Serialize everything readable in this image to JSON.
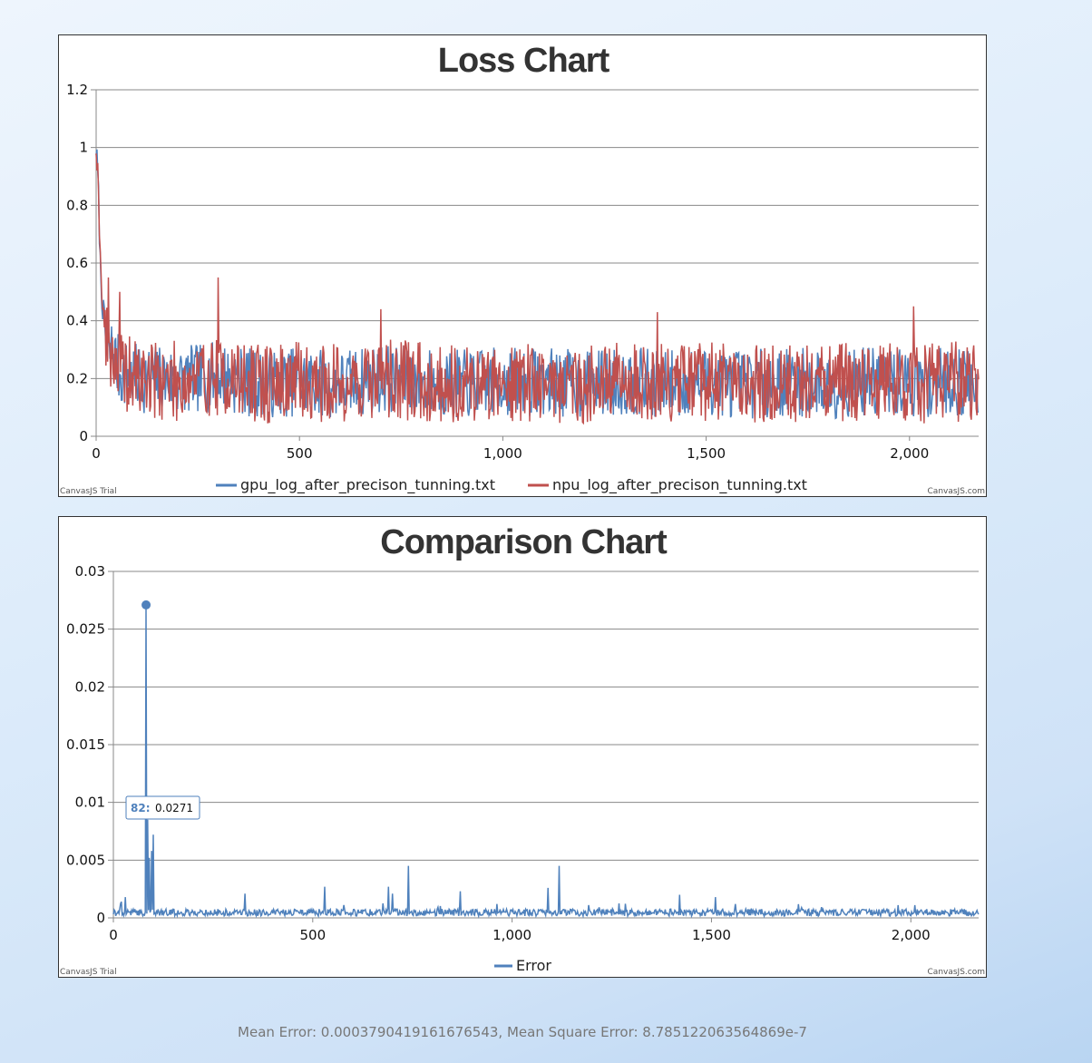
{
  "colors": {
    "gpu": "#4f81bc",
    "npu": "#c0504e",
    "error": "#4f81bc",
    "grid": "#888888"
  },
  "chart_data": [
    {
      "type": "line",
      "title": "Loss Chart",
      "xlabel": "",
      "ylabel": "",
      "xlim": [
        0,
        2170
      ],
      "ylim": [
        0,
        1.2
      ],
      "x_ticks": [
        0,
        500,
        1000,
        1500,
        2000
      ],
      "x_tick_labels": [
        "0",
        "500",
        "1,000",
        "1,500",
        "2,000"
      ],
      "y_ticks": [
        0,
        0.2,
        0.4,
        0.6,
        0.8,
        1,
        1.2
      ],
      "y_tick_labels": [
        "0",
        "0.2",
        "0.4",
        "0.6",
        "0.8",
        "1",
        "1.2"
      ],
      "grid": true,
      "legend_position": "bottom",
      "series": [
        {
          "name": "gpu_log_after_precison_tunning.txt",
          "color": "#4f81bc",
          "x": [
            0,
            5,
            10,
            15,
            20,
            25,
            30,
            40,
            50,
            60,
            80,
            100,
            150,
            200,
            250,
            300,
            400,
            500,
            600,
            700,
            800,
            900,
            1000,
            1100,
            1200,
            1300,
            1400,
            1500,
            1600,
            1700,
            1800,
            1900,
            2000,
            2100,
            2170
          ],
          "values": [
            1.0,
            0.88,
            0.6,
            0.46,
            0.4,
            0.3,
            0.28,
            0.3,
            0.25,
            0.22,
            0.21,
            0.2,
            0.2,
            0.19,
            0.2,
            0.21,
            0.18,
            0.19,
            0.18,
            0.2,
            0.19,
            0.18,
            0.19,
            0.19,
            0.18,
            0.19,
            0.18,
            0.19,
            0.18,
            0.19,
            0.18,
            0.19,
            0.18,
            0.19,
            0.18
          ]
        },
        {
          "name": "npu_log_after_precison_tunning.txt",
          "color": "#c0504e",
          "x": [
            0,
            5,
            10,
            15,
            20,
            25,
            30,
            40,
            50,
            60,
            80,
            100,
            150,
            200,
            250,
            300,
            400,
            500,
            600,
            700,
            800,
            900,
            1000,
            1100,
            1200,
            1300,
            1400,
            1500,
            1600,
            1700,
            1800,
            1900,
            2000,
            2100,
            2170
          ],
          "values": [
            1.0,
            0.9,
            0.62,
            0.48,
            0.4,
            0.32,
            0.29,
            0.3,
            0.26,
            0.22,
            0.21,
            0.2,
            0.2,
            0.19,
            0.2,
            0.21,
            0.18,
            0.19,
            0.18,
            0.2,
            0.19,
            0.18,
            0.19,
            0.19,
            0.18,
            0.19,
            0.18,
            0.19,
            0.18,
            0.19,
            0.18,
            0.19,
            0.18,
            0.19,
            0.18
          ],
          "spikes": [
            [
              30,
              0.55
            ],
            [
              58,
              0.5
            ],
            [
              300,
              0.55
            ],
            [
              700,
              0.44
            ],
            [
              1380,
              0.43
            ],
            [
              1735,
              0.42
            ],
            [
              2010,
              0.45
            ],
            [
              2135,
              0.41
            ]
          ],
          "noise_amplitude": 0.14
        }
      ]
    },
    {
      "type": "line",
      "title": "Comparison Chart",
      "xlabel": "",
      "ylabel": "",
      "xlim": [
        0,
        2170
      ],
      "ylim": [
        0,
        0.03
      ],
      "x_ticks": [
        0,
        500,
        1000,
        1500,
        2000
      ],
      "x_tick_labels": [
        "0",
        "500",
        "1,000",
        "1,500",
        "2,000"
      ],
      "y_ticks": [
        0,
        0.005,
        0.01,
        0.015,
        0.02,
        0.025,
        0.03
      ],
      "y_tick_labels": [
        "0",
        "0.005",
        "0.01",
        "0.015",
        "0.02",
        "0.025",
        "0.03"
      ],
      "grid": true,
      "legend_position": "bottom",
      "series": [
        {
          "name": "Error",
          "color": "#4f81bc",
          "baseline": 0.0004,
          "noise_amplitude": 0.0006,
          "spikes": [
            [
              20,
              0.0014
            ],
            [
              30,
              0.0018
            ],
            [
              82,
              0.0271
            ],
            [
              86,
              0.0085
            ],
            [
              90,
              0.0052
            ],
            [
              96,
              0.0058
            ],
            [
              100,
              0.0072
            ],
            [
              105,
              0.0035
            ],
            [
              115,
              0.0022
            ],
            [
              330,
              0.0021
            ],
            [
              530,
              0.0027
            ],
            [
              545,
              0.0024
            ],
            [
              690,
              0.0027
            ],
            [
              700,
              0.0021
            ],
            [
              740,
              0.0045
            ],
            [
              870,
              0.0023
            ],
            [
              1090,
              0.0026
            ],
            [
              1118,
              0.0045
            ],
            [
              1420,
              0.002
            ],
            [
              1510,
              0.0018
            ],
            [
              1560,
              0.0012
            ],
            [
              2010,
              0.0011
            ]
          ]
        }
      ],
      "tooltip": {
        "x_label": "82:",
        "value_label": "0.0271",
        "x": 82,
        "y": 0.0271
      }
    }
  ],
  "credits": {
    "trial": "CanvasJS Trial",
    "site": "CanvasJS.com"
  },
  "stats_text": "Mean Error: 0.0003790419161676543, Mean Square Error: 8.785122063564869e-7"
}
